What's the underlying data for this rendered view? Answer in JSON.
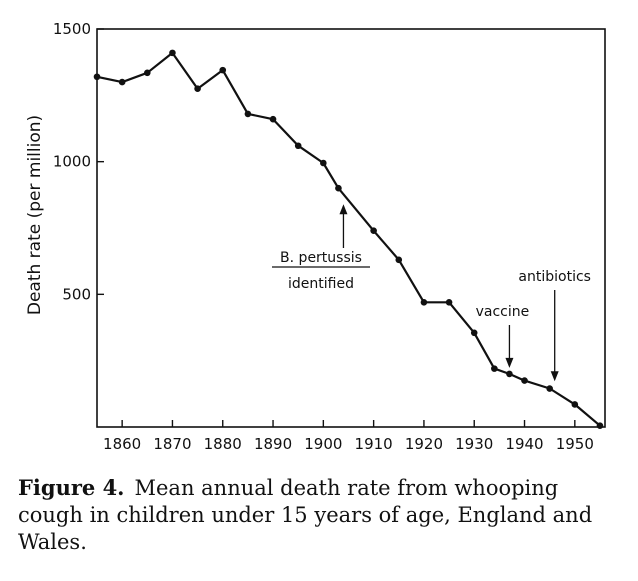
{
  "chart_data": {
    "type": "line",
    "title": "",
    "xlabel": "",
    "ylabel": "Death rate (per million)",
    "xlim": [
      1855,
      1956
    ],
    "ylim": [
      0,
      1500
    ],
    "xticks": [
      1860,
      1870,
      1880,
      1890,
      1900,
      1910,
      1920,
      1930,
      1940,
      1950
    ],
    "yticks": [
      500,
      1000,
      1500
    ],
    "grid": false,
    "series": [
      {
        "x": [
          1855,
          1860,
          1865,
          1870,
          1875,
          1880,
          1885,
          1890,
          1895,
          1900,
          1903,
          1910,
          1915,
          1920,
          1925,
          1930,
          1934,
          1937,
          1940,
          1945,
          1950,
          1955
        ],
        "y": [
          1320,
          1300,
          1335,
          1410,
          1275,
          1345,
          1180,
          1160,
          1060,
          995,
          900,
          740,
          630,
          470,
          470,
          355,
          220,
          200,
          175,
          145,
          85,
          5
        ]
      }
    ],
    "annotations": [
      {
        "line1": "B. pertussis",
        "line2": "identified",
        "x": 1904,
        "y": 900
      },
      {
        "text": "vaccine",
        "x": 1937,
        "y": 200
      },
      {
        "text": "antibiotics",
        "x": 1946,
        "y": 150
      }
    ]
  },
  "caption": {
    "label": "Figure 4.",
    "text": "Mean annual death rate from whooping cough in children under 15 years of age, England and Wales."
  }
}
